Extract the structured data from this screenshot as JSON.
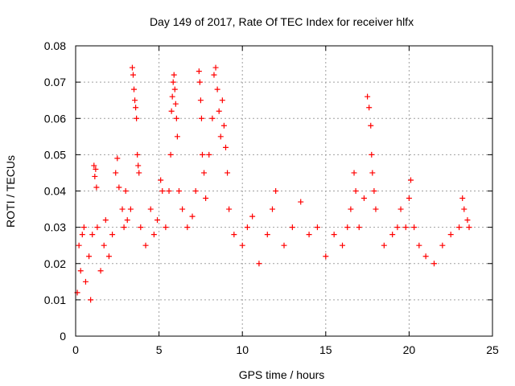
{
  "chart_data": {
    "type": "scatter",
    "title": "Day 149 of 2017, Rate Of TEC Index for receiver hlfx",
    "xlabel": "GPS time / hours",
    "ylabel": "ROTI / TECUs",
    "xlim": [
      0,
      25
    ],
    "ylim": [
      0,
      0.08
    ],
    "xticks": [
      0,
      5,
      10,
      15,
      20,
      25
    ],
    "yticks": [
      0,
      0.01,
      0.02,
      0.03,
      0.04,
      0.05,
      0.06,
      0.07,
      0.08
    ],
    "xtick_labels": [
      "0",
      "5",
      "10",
      "15",
      "20",
      "25"
    ],
    "ytick_labels": [
      "0",
      "0.01",
      "0.02",
      "0.03",
      "0.04",
      "0.05",
      "0.06",
      "0.07",
      "0.08"
    ],
    "grid": true,
    "marker": "+",
    "marker_color": "#ff0000",
    "series": [
      {
        "name": "ROTI",
        "data_note": "dense point cloud; representative samples read from plot",
        "points": [
          [
            0.1,
            0.012
          ],
          [
            0.2,
            0.025
          ],
          [
            0.3,
            0.018
          ],
          [
            0.4,
            0.028
          ],
          [
            0.5,
            0.03
          ],
          [
            0.6,
            0.015
          ],
          [
            0.8,
            0.022
          ],
          [
            0.9,
            0.01
          ],
          [
            1.0,
            0.028
          ],
          [
            1.1,
            0.047
          ],
          [
            1.15,
            0.044
          ],
          [
            1.2,
            0.046
          ],
          [
            1.25,
            0.041
          ],
          [
            1.3,
            0.03
          ],
          [
            1.5,
            0.018
          ],
          [
            1.7,
            0.025
          ],
          [
            1.8,
            0.032
          ],
          [
            2.0,
            0.022
          ],
          [
            2.2,
            0.028
          ],
          [
            2.4,
            0.045
          ],
          [
            2.5,
            0.049
          ],
          [
            2.6,
            0.041
          ],
          [
            2.8,
            0.035
          ],
          [
            2.9,
            0.03
          ],
          [
            3.0,
            0.04
          ],
          [
            3.1,
            0.032
          ],
          [
            3.3,
            0.035
          ],
          [
            3.4,
            0.074
          ],
          [
            3.45,
            0.072
          ],
          [
            3.5,
            0.068
          ],
          [
            3.55,
            0.065
          ],
          [
            3.6,
            0.063
          ],
          [
            3.65,
            0.06
          ],
          [
            3.7,
            0.05
          ],
          [
            3.75,
            0.047
          ],
          [
            3.8,
            0.045
          ],
          [
            3.9,
            0.03
          ],
          [
            4.2,
            0.025
          ],
          [
            4.5,
            0.035
          ],
          [
            4.7,
            0.028
          ],
          [
            4.9,
            0.032
          ],
          [
            5.1,
            0.043
          ],
          [
            5.2,
            0.04
          ],
          [
            5.4,
            0.03
          ],
          [
            5.6,
            0.04
          ],
          [
            5.7,
            0.05
          ],
          [
            5.75,
            0.062
          ],
          [
            5.8,
            0.066
          ],
          [
            5.85,
            0.07
          ],
          [
            5.9,
            0.072
          ],
          [
            5.95,
            0.068
          ],
          [
            6.0,
            0.064
          ],
          [
            6.05,
            0.06
          ],
          [
            6.1,
            0.055
          ],
          [
            6.2,
            0.04
          ],
          [
            6.4,
            0.035
          ],
          [
            6.7,
            0.03
          ],
          [
            7.0,
            0.033
          ],
          [
            7.2,
            0.04
          ],
          [
            7.4,
            0.073
          ],
          [
            7.45,
            0.07
          ],
          [
            7.5,
            0.065
          ],
          [
            7.55,
            0.06
          ],
          [
            7.6,
            0.05
          ],
          [
            7.7,
            0.045
          ],
          [
            7.8,
            0.038
          ],
          [
            8.0,
            0.05
          ],
          [
            8.2,
            0.06
          ],
          [
            8.3,
            0.072
          ],
          [
            8.4,
            0.074
          ],
          [
            8.5,
            0.068
          ],
          [
            8.6,
            0.062
          ],
          [
            8.7,
            0.055
          ],
          [
            8.8,
            0.065
          ],
          [
            8.9,
            0.058
          ],
          [
            9.0,
            0.052
          ],
          [
            9.1,
            0.045
          ],
          [
            9.2,
            0.035
          ],
          [
            9.5,
            0.028
          ],
          [
            10.0,
            0.025
          ],
          [
            10.3,
            0.03
          ],
          [
            10.6,
            0.033
          ],
          [
            11.0,
            0.02
          ],
          [
            11.5,
            0.028
          ],
          [
            11.8,
            0.035
          ],
          [
            12.0,
            0.04
          ],
          [
            12.5,
            0.025
          ],
          [
            13.0,
            0.03
          ],
          [
            13.5,
            0.037
          ],
          [
            14.0,
            0.028
          ],
          [
            14.5,
            0.03
          ],
          [
            15.0,
            0.022
          ],
          [
            15.5,
            0.028
          ],
          [
            16.0,
            0.025
          ],
          [
            16.3,
            0.03
          ],
          [
            16.5,
            0.035
          ],
          [
            16.7,
            0.045
          ],
          [
            16.8,
            0.04
          ],
          [
            17.0,
            0.03
          ],
          [
            17.3,
            0.038
          ],
          [
            17.5,
            0.066
          ],
          [
            17.6,
            0.063
          ],
          [
            17.7,
            0.058
          ],
          [
            17.75,
            0.05
          ],
          [
            17.8,
            0.045
          ],
          [
            17.9,
            0.04
          ],
          [
            18.0,
            0.035
          ],
          [
            18.5,
            0.025
          ],
          [
            19.0,
            0.028
          ],
          [
            19.3,
            0.03
          ],
          [
            19.5,
            0.035
          ],
          [
            19.8,
            0.03
          ],
          [
            20.0,
            0.038
          ],
          [
            20.1,
            0.043
          ],
          [
            20.3,
            0.03
          ],
          [
            20.6,
            0.025
          ],
          [
            21.0,
            0.022
          ],
          [
            21.5,
            0.02
          ],
          [
            22.0,
            0.025
          ],
          [
            22.5,
            0.028
          ],
          [
            23.0,
            0.03
          ],
          [
            23.2,
            0.038
          ],
          [
            23.3,
            0.035
          ],
          [
            23.5,
            0.032
          ],
          [
            23.6,
            0.03
          ]
        ]
      }
    ]
  }
}
